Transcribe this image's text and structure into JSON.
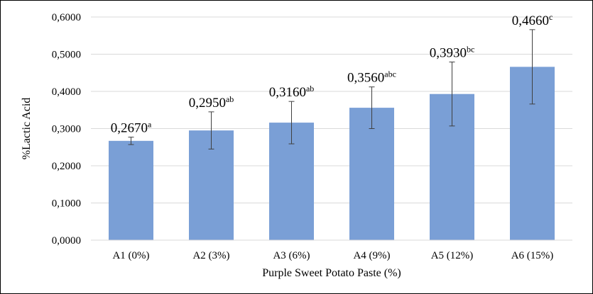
{
  "chart_data": {
    "type": "bar",
    "title": "",
    "xlabel": "Purple Sweet Potato Paste (%)",
    "ylabel": "%Lactic Acid",
    "categories": [
      "A1 (0%)",
      "A2 (3%)",
      "A3 (6%)",
      "A4 (9%)",
      "A5 (12%)",
      "A6 (15%)"
    ],
    "values": [
      0.267,
      0.295,
      0.316,
      0.356,
      0.393,
      0.466
    ],
    "errors": [
      0.01,
      0.05,
      0.057,
      0.056,
      0.086,
      0.1
    ],
    "labels": [
      "0,2670",
      "0,2950",
      "0,3160",
      "0,3560",
      "0,3930",
      "0,4660"
    ],
    "label_letters": [
      "a",
      "ab",
      "ab",
      "abc",
      "bc",
      "c"
    ],
    "yticks": [
      0,
      0.1,
      0.2,
      0.3,
      0.4,
      0.5,
      0.6
    ],
    "ytick_labels": [
      "0,0000",
      "0,1000",
      "0,2000",
      "0,3000",
      "0,4000",
      "0,5000",
      "0,6000"
    ],
    "ylim": [
      0,
      0.6
    ],
    "grid": true,
    "legend": "none",
    "bar_color": "#7a9fd6",
    "grid_color": "#d9d9d9",
    "error_color": "#404040"
  }
}
